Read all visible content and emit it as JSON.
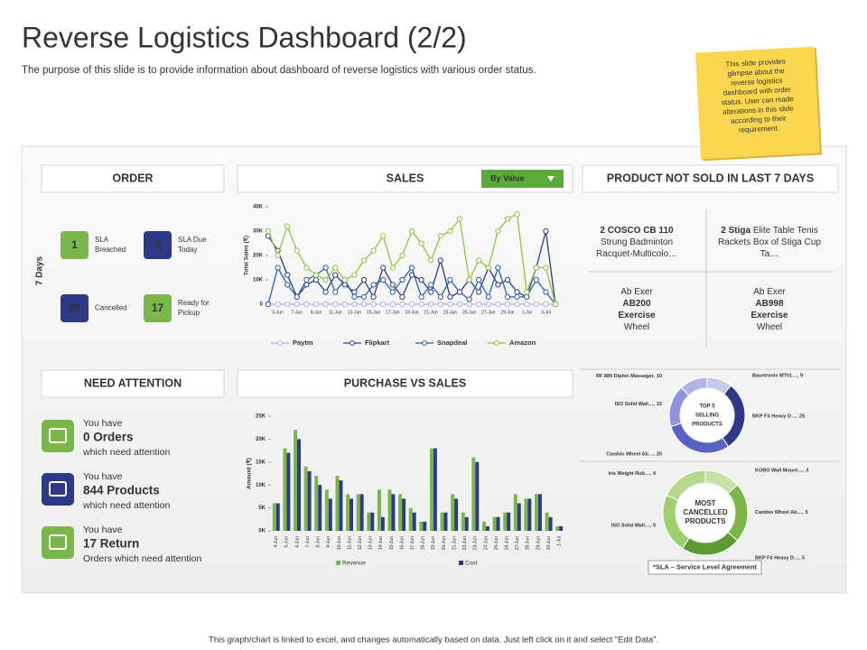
{
  "header": {
    "title": "Reverse Logistics Dashboard (2/2)",
    "subtitle": "The purpose of this slide is to provide information about dashboard of reverse logistics with various order status."
  },
  "note": [
    "This slide provides",
    "glimpse about the",
    "reverse logistics",
    "dashboard with order",
    "status. User can made",
    "alterations in this slide",
    "according to their",
    "requirement."
  ],
  "order": {
    "title": "ORDER",
    "period": "7 Days",
    "items": [
      {
        "value": 1,
        "label": [
          "SLA",
          "Breached"
        ],
        "color": "#7ab648"
      },
      {
        "value": 3,
        "label": [
          "SLA Due",
          "Today"
        ],
        "color": "#2e3a87"
      },
      {
        "value": 26,
        "label": [
          "Cancelled"
        ],
        "color": "#2e3a87"
      },
      {
        "value": 17,
        "label": [
          "Ready for",
          "Pickup"
        ],
        "color": "#7ab648"
      }
    ]
  },
  "sales": {
    "title": "SALES",
    "filter": "By Value"
  },
  "not_sold": {
    "title": "PRODUCT NOT SOLD IN LAST 7 DAYS",
    "products": [
      {
        "lines": [
          [
            {
              "text": "2 COSCO CB 110",
              "bold": true
            }
          ],
          [
            {
              "text": "Strung Badminton"
            }
          ],
          [
            {
              "text": "Racquet-Multicolo…"
            }
          ]
        ]
      },
      {
        "lines": [
          [
            {
              "text": "2 Stiga",
              "bold": true
            },
            {
              "text": " Elite Table Tenis"
            }
          ],
          [
            {
              "text": "Rackets Box of Stiga Cup"
            }
          ],
          [
            {
              "text": "Ta…"
            }
          ]
        ]
      },
      {
        "lines": [
          [
            {
              "text": "Ab Exer"
            }
          ],
          [
            {
              "text": "AB200",
              "bold": true
            }
          ],
          [
            {
              "text": "Exercise",
              "bold": true
            }
          ],
          [
            {
              "text": "Wheel"
            }
          ]
        ]
      },
      {
        "lines": [
          [
            {
              "text": "Ab Exer"
            }
          ],
          [
            {
              "text": "AB998",
              "bold": true
            }
          ],
          [
            {
              "text": "Exercise",
              "bold": true
            }
          ],
          [
            {
              "text": "Wheel"
            }
          ]
        ]
      }
    ]
  },
  "attention": {
    "title": "NEED ATTENTION",
    "items": [
      {
        "prefix": "You have",
        "highlight": "0 Orders",
        "suffix": "which need attention",
        "color": "#7ab648"
      },
      {
        "prefix": "You have",
        "highlight": "844 Products",
        "suffix": "which need attention",
        "color": "#2e3a87"
      },
      {
        "prefix": "You have",
        "highlight": "17 Return",
        "suffix": "Orders which need attention",
        "color": "#7ab648"
      }
    ]
  },
  "purchase": {
    "title": "PURCHASE VS SALES"
  },
  "sla_note": "*SLA – Service Level Agreement",
  "footer": "This graph/chart is linked to excel, and changes automatically based on data. Just left click on it and select “Edit Data”.",
  "chart_data": [
    {
      "type": "line",
      "y_label": "Total Sales (₹)",
      "categories": [
        null,
        "5-Jun",
        null,
        "7-Jun",
        null,
        "9-Jun",
        null,
        "11-Jun",
        null,
        "13-Jun",
        null,
        "15-Jun",
        null,
        "17-Jun",
        null,
        "19-Jun",
        null,
        "21-Jun",
        null,
        "23-Jun",
        null,
        "25-Jun",
        null,
        "27-Jun",
        null,
        "29-Jun",
        null,
        "1-Jul",
        null,
        "3-Jul",
        null
      ],
      "ylim": [
        0,
        40000
      ],
      "yticks": [
        0,
        {
          "value": 10000,
          "label": "10K"
        },
        {
          "value": 20000,
          "label": "20K"
        },
        {
          "value": 30000,
          "label": "30K"
        },
        {
          "value": 40000,
          "label": "40K"
        }
      ],
      "series": [
        {
          "name": "Paytm",
          "color": "#b3b0e6",
          "values": [
            0,
            0,
            0,
            0,
            0,
            0,
            0,
            0,
            0,
            0,
            0,
            0,
            0,
            0,
            0,
            0,
            0,
            0,
            0,
            0,
            0,
            0,
            0,
            0,
            0,
            0,
            0,
            0,
            0,
            0,
            0
          ]
        },
        {
          "name": "Flipkart",
          "color": "#2e3a87",
          "values": [
            28000,
            22000,
            12000,
            3000,
            8000,
            10000,
            5000,
            12000,
            8000,
            5000,
            10000,
            3000,
            15000,
            8000,
            3000,
            12000,
            10000,
            5000,
            18000,
            3000,
            5000,
            10000,
            5000,
            15000,
            8000,
            10000,
            5000,
            3000,
            15000,
            30000,
            0
          ]
        },
        {
          "name": "Snapdeal",
          "color": "#2b5ea8",
          "values": [
            0,
            15000,
            8000,
            3000,
            10000,
            12000,
            15000,
            5000,
            10000,
            3000,
            3000,
            8000,
            10000,
            5000,
            10000,
            15000,
            3000,
            8000,
            3000,
            10000,
            5000,
            2000,
            10000,
            3000,
            15000,
            3000,
            3000,
            3000,
            10000,
            5000,
            0
          ]
        },
        {
          "name": "Amazon",
          "color": "#8cc63f",
          "values": [
            30000,
            20000,
            32000,
            22000,
            15000,
            12000,
            10000,
            15000,
            10000,
            12000,
            18000,
            22000,
            28000,
            15000,
            20000,
            30000,
            25000,
            18000,
            28000,
            30000,
            35000,
            10000,
            18000,
            15000,
            30000,
            35000,
            37000,
            5000,
            15000,
            15000,
            0
          ]
        }
      ]
    },
    {
      "type": "bar",
      "y_label": "Amount (₹)",
      "categories": [
        "4-Jun",
        "5-Jun",
        "6-Jun",
        "7-Jun",
        "8-Jun",
        "9-Jun",
        "10-Jun",
        "11-Jun",
        "12-Jun",
        "13-Jun",
        "14-Jun",
        "15-Jun",
        "16-Jun",
        "17-Jun",
        "18-Jun",
        "19-Jun",
        "20-Jun",
        "21-Jun",
        "22-Jun",
        "23-Jun",
        "24-Jun",
        "25-Jun",
        "26-Jun",
        "27-Jun",
        "28-Jun",
        "29-Jun",
        "30-Jun",
        "1-Jul"
      ],
      "ylim": [
        0,
        25000
      ],
      "yticks": [
        {
          "value": 0,
          "label": "0K"
        },
        {
          "value": 5000,
          "label": "5K"
        },
        {
          "value": 10000,
          "label": "10K"
        },
        {
          "value": 15000,
          "label": "15K"
        },
        {
          "value": 20000,
          "label": "20K"
        },
        {
          "value": 25000,
          "label": "25K"
        }
      ],
      "series": [
        {
          "name": "Revenue",
          "color": "#7ab648",
          "values": [
            6000,
            18000,
            22000,
            14000,
            12000,
            9000,
            12000,
            8000,
            8000,
            4000,
            9000,
            9000,
            8000,
            5000,
            2000,
            18000,
            4000,
            8000,
            4000,
            16000,
            2000,
            3000,
            4000,
            8000,
            7000,
            8000,
            4000,
            1000
          ]
        },
        {
          "name": "Cost",
          "color": "#2e3a87",
          "values": [
            6000,
            17000,
            20000,
            13000,
            10000,
            7000,
            11000,
            7000,
            8000,
            4000,
            3000,
            8000,
            7000,
            4000,
            2000,
            18000,
            4000,
            7000,
            3000,
            15000,
            1000,
            3000,
            4000,
            6000,
            7000,
            8000,
            3000,
            1000
          ]
        }
      ]
    },
    {
      "type": "pie",
      "center": [
        "TOP 5",
        "SELLING",
        "PRODUCTS"
      ],
      "labels": [
        "Basetronix MT01…,",
        "BKP Fit Heavy D…,",
        "Cambio Wheel Ab…,",
        "ISO Solid Wall…,",
        "RF 889 Dlphin Massager,"
      ],
      "values": [
        9,
        25,
        25,
        15,
        10
      ],
      "colors": [
        "#c7c8ee",
        "#2e3a87",
        "#5a62c4",
        "#8f93dd",
        "#b1b4e8"
      ]
    },
    {
      "type": "pie",
      "center": [
        "MOST",
        "CANCELLED",
        "PRODUCTS"
      ],
      "labels": [
        "KOBO Wall Mount…,",
        "Cambio Wheel Ab…,",
        "BKP Fit Heavy D…,",
        "ISO Solid Wall…,",
        "Iris Weight Rub…,"
      ],
      "values": [
        3,
        5,
        5,
        5,
        4
      ],
      "colors": [
        "#c6e3a6",
        "#7ab648",
        "#5e9a34",
        "#9fcf6d",
        "#b5da8c"
      ]
    }
  ]
}
